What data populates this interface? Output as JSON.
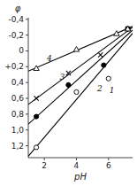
{
  "chart_data": {
    "type": "scatter",
    "xlabel": "pH",
    "ylabel": "φ",
    "xlim": [
      1.0,
      7.5
    ],
    "ylim": [
      1.35,
      -0.42
    ],
    "xticks": [
      2,
      4,
      6
    ],
    "yticks": [
      {
        "value": -0.4,
        "label": "-0,4"
      },
      {
        "value": -0.2,
        "label": "-0,2"
      },
      0,
      {
        "value": 0.2,
        "label": "+0,2"
      },
      {
        "value": 0.4,
        "label": "0,4"
      },
      {
        "value": 0.6,
        "label": "0,6"
      },
      {
        "value": 0.8,
        "label": "0,8"
      },
      {
        "value": 1.0,
        "label": "1,0"
      },
      {
        "value": 1.2,
        "label": "1,2"
      }
    ],
    "series": [
      {
        "type": "line",
        "line_style": "solid",
        "color": "#000000",
        "x": [
          1.0,
          7.5
        ],
        "values": [
          1.3315,
          -0.2236
        ]
      },
      {
        "type": "scatter",
        "marker": "circle-open",
        "color": "#000000",
        "x": [
          1.5,
          4.0,
          6.0,
          7.2
        ],
        "values": [
          1.22,
          0.52,
          0.35,
          -0.28
        ]
      },
      {
        "type": "line",
        "line_style": "solid",
        "color": "#000000",
        "x": [
          1.0,
          7.5
        ],
        "values": [
          0.9266,
          -0.2642
        ]
      },
      {
        "type": "scatter",
        "marker": "circle",
        "color": "#000000",
        "x": [
          1.5,
          3.5,
          5.7,
          7.2
        ],
        "values": [
          0.83,
          0.43,
          0.18,
          -0.28
        ]
      },
      {
        "type": "line",
        "line_style": "solid",
        "color": "#000000",
        "x": [
          1.0,
          7.5
        ],
        "values": [
          0.6757,
          -0.2983
        ]
      },
      {
        "type": "scatter",
        "marker": "x",
        "color": "#000000",
        "x": [
          1.5,
          3.5,
          5.5,
          7.2
        ],
        "values": [
          0.6,
          0.28,
          0.05,
          -0.28
        ]
      },
      {
        "type": "line",
        "line_style": "solid",
        "color": "#000000",
        "x": [
          1.0,
          7.5
        ],
        "values": [
          0.2557,
          -0.3099
        ]
      },
      {
        "type": "scatter",
        "marker": "triangle-open",
        "color": "#000000",
        "x": [
          1.5,
          4.0,
          6.5,
          7.2
        ],
        "values": [
          0.22,
          -0.02,
          -0.22,
          -0.28
        ]
      }
    ],
    "annotations": [
      {
        "text": "1",
        "x": 6.05,
        "y": 0.5
      },
      {
        "text": "2",
        "x": 5.3,
        "y": 0.48
      },
      {
        "text": "3",
        "x": 2.95,
        "y": 0.34
      },
      {
        "text": "4",
        "x": 2.15,
        "y": 0.1
      }
    ]
  }
}
